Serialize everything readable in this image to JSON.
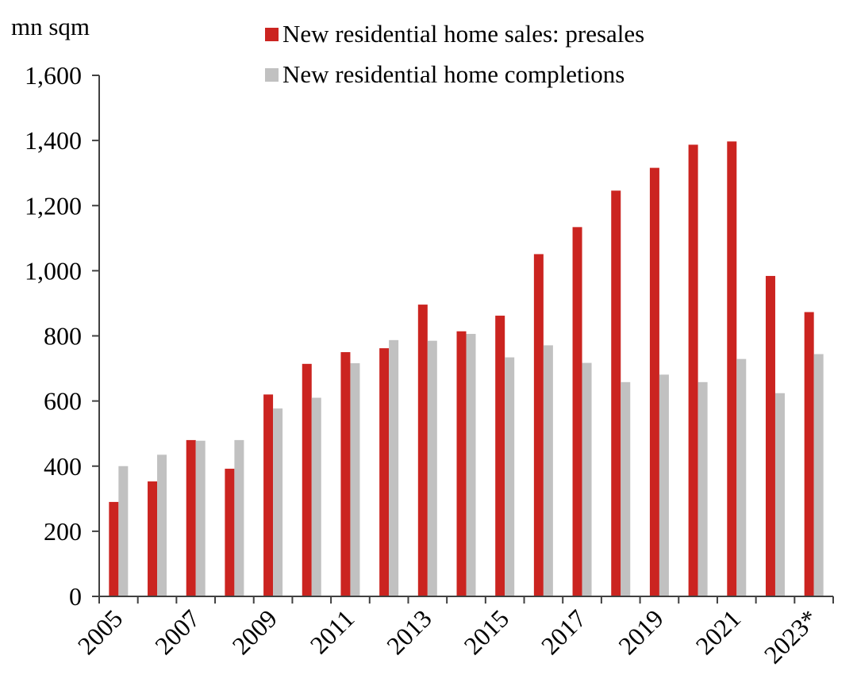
{
  "chart": {
    "unit_label": "mn sqm",
    "colors": {
      "presales": "#cb2420",
      "completions": "#c1c1c1",
      "axis": "#404040",
      "text": "#000000",
      "background": "#ffffff"
    }
  },
  "chart_data": {
    "type": "bar",
    "title": "",
    "xlabel": "",
    "ylabel": "mn sqm",
    "ylim": [
      0,
      1600
    ],
    "ytick_interval": 200,
    "ytick_labels": [
      "0",
      "200",
      "400",
      "600",
      "800",
      "1,000",
      "1,200",
      "1,400",
      "1,600"
    ],
    "grid": false,
    "legend_position": "top-center",
    "categories": [
      "2005",
      "2006",
      "2007",
      "2008",
      "2009",
      "2010",
      "2011",
      "2012",
      "2013",
      "2014",
      "2015",
      "2016",
      "2017",
      "2018",
      "2019",
      "2020",
      "2021",
      "2022",
      "2023*"
    ],
    "xtick_label_every": 2,
    "series": [
      {
        "name": "New residential home sales: presales",
        "key": "presales",
        "color": "#cb2420",
        "values": [
          290,
          353,
          480,
          392,
          620,
          714,
          750,
          762,
          896,
          814,
          862,
          1051,
          1134,
          1246,
          1316,
          1387,
          1397,
          984,
          873
        ]
      },
      {
        "name": "New residential home completions",
        "key": "completions",
        "color": "#c1c1c1",
        "values": [
          400,
          435,
          478,
          480,
          577,
          610,
          716,
          787,
          785,
          806,
          734,
          771,
          717,
          658,
          681,
          658,
          729,
          624,
          744
        ]
      }
    ]
  }
}
